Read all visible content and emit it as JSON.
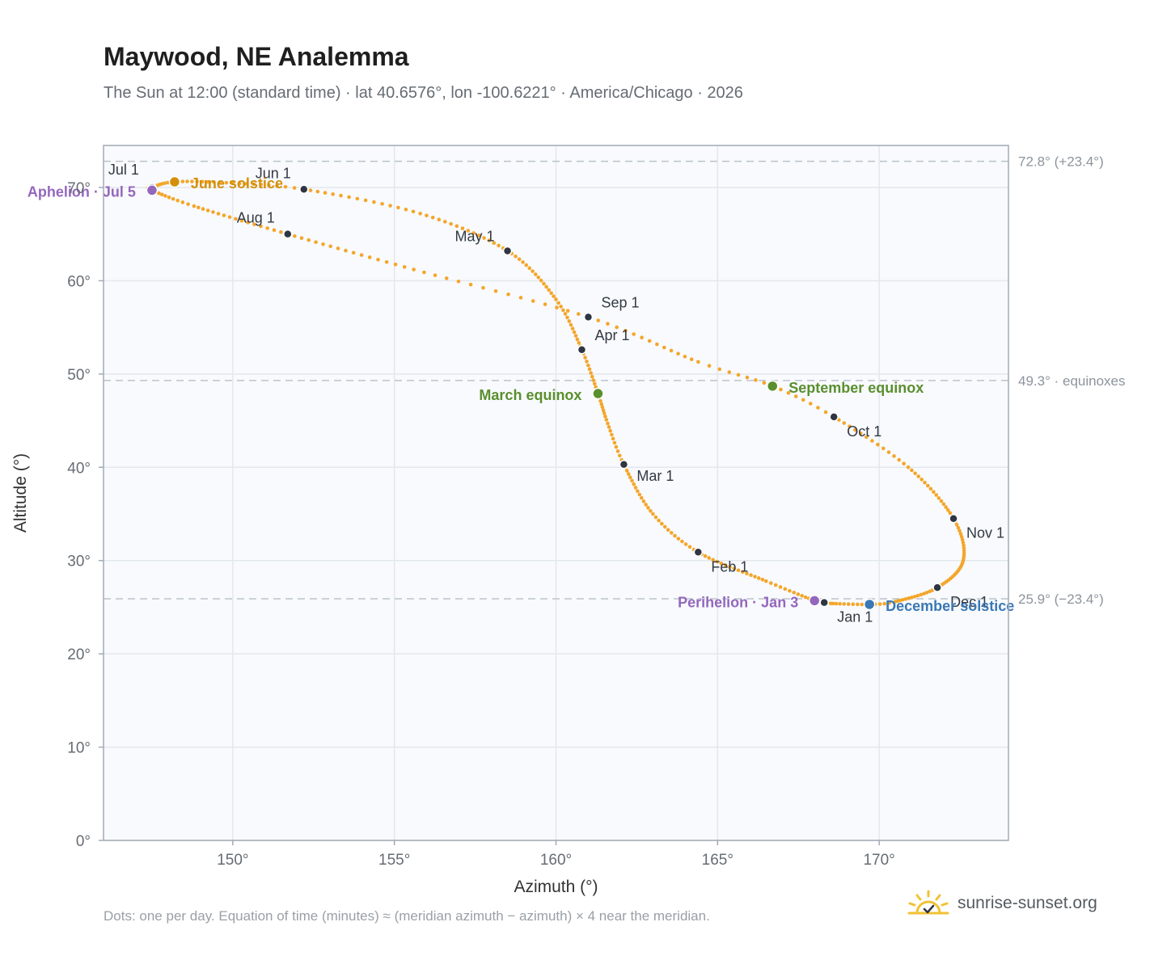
{
  "header": {
    "title": "Maywood, NE Analemma",
    "subtitle": "The Sun at 12:00 (standard time) · lat 40.6576°, lon -100.6221° · America/Chicago · 2026"
  },
  "footer": {
    "note": "Dots: one per day. Equation of time (minutes) ≈ (meridian azimuth − azimuth) × 4 near the meridian.",
    "brand": "sunrise-sunset.org"
  },
  "colors": {
    "curve": "#f4a62a",
    "month_marker": "#2f3542",
    "equinox": "#5a8f2e",
    "june_solstice": "#d4900d",
    "december_solstice": "#3a78b5",
    "apsis": "#9467bd",
    "plot_bg": "#f8fafd",
    "grid": "#e3e8ee",
    "axis": "#a3aab5",
    "ref_line": "#bcc3cb",
    "brand_sun": "#f1c232"
  },
  "chart_data": {
    "type": "scatter",
    "xlabel": "Azimuth (°)",
    "ylabel": "Altitude (°)",
    "xlim": [
      146,
      174
    ],
    "ylim": [
      0,
      74.5
    ],
    "x_ticks": [
      150,
      155,
      160,
      165,
      170
    ],
    "x_tick_labels": [
      "150°",
      "155°",
      "160°",
      "165°",
      "170°"
    ],
    "y_ticks": [
      0,
      10,
      20,
      30,
      40,
      50,
      60,
      70
    ],
    "y_tick_labels": [
      "0°",
      "10°",
      "20°",
      "30°",
      "40°",
      "50°",
      "60°",
      "70°"
    ],
    "grid": true,
    "reference_lines": [
      {
        "y": 72.8,
        "label": "72.8° (+23.4°)"
      },
      {
        "y": 49.3,
        "label": "49.3° · equinoxes"
      },
      {
        "y": 25.9,
        "label": "25.9° (−23.4°)"
      }
    ],
    "month_markers": [
      {
        "label": "Jan 1",
        "az": 168.3,
        "alt": 25.5
      },
      {
        "label": "Feb 1",
        "az": 164.4,
        "alt": 30.9
      },
      {
        "label": "Mar 1",
        "az": 162.1,
        "alt": 40.3
      },
      {
        "label": "Apr 1",
        "az": 160.8,
        "alt": 52.6
      },
      {
        "label": "May 1",
        "az": 158.5,
        "alt": 63.2
      },
      {
        "label": "Jun 1",
        "az": 152.2,
        "alt": 69.8
      },
      {
        "label": "Jul 1",
        "az": 147.5,
        "alt": 70.0
      },
      {
        "label": "Aug 1",
        "az": 151.7,
        "alt": 65.0
      },
      {
        "label": "Sep 1",
        "az": 161.0,
        "alt": 56.1
      },
      {
        "label": "Oct 1",
        "az": 168.6,
        "alt": 45.4
      },
      {
        "label": "Nov 1",
        "az": 172.3,
        "alt": 34.5
      },
      {
        "label": "Dec 1",
        "az": 171.8,
        "alt": 27.1
      }
    ],
    "events": [
      {
        "label": "March equinox",
        "az": 161.3,
        "alt": 47.9,
        "color_key": "equinox"
      },
      {
        "label": "September equinox",
        "az": 166.7,
        "alt": 48.7,
        "color_key": "equinox"
      },
      {
        "label": "June solstice",
        "az": 148.2,
        "alt": 70.6,
        "color_key": "june_solstice"
      },
      {
        "label": "December solstice",
        "az": 169.7,
        "alt": 25.3,
        "color_key": "december_solstice"
      },
      {
        "label": "Aphelion · Jul 5",
        "az": 147.5,
        "alt": 69.7,
        "color_key": "apsis"
      },
      {
        "label": "Perihelion · Jan 3",
        "az": 168.0,
        "alt": 25.7,
        "color_key": "apsis"
      }
    ],
    "curve_anchors": [
      [
        1,
        168.3,
        25.5
      ],
      [
        3,
        168.0,
        25.7
      ],
      [
        15,
        166.5,
        27.8
      ],
      [
        32,
        164.4,
        30.9
      ],
      [
        45,
        163.0,
        35.0
      ],
      [
        60,
        162.1,
        40.3
      ],
      [
        70,
        161.6,
        44.7
      ],
      [
        79,
        161.3,
        47.9
      ],
      [
        91,
        160.8,
        52.6
      ],
      [
        105,
        160.0,
        58.0
      ],
      [
        121,
        158.5,
        63.2
      ],
      [
        137,
        155.8,
        67.2
      ],
      [
        152,
        152.2,
        69.8
      ],
      [
        162,
        149.8,
        70.5
      ],
      [
        172,
        148.2,
        70.6
      ],
      [
        182,
        147.5,
        70.0
      ],
      [
        186,
        147.5,
        69.7
      ],
      [
        197,
        148.8,
        68.0
      ],
      [
        213,
        151.7,
        65.0
      ],
      [
        229,
        155.6,
        61.2
      ],
      [
        244,
        161.0,
        56.1
      ],
      [
        258,
        164.4,
        51.3
      ],
      [
        266,
        166.7,
        48.7
      ],
      [
        274,
        168.6,
        45.4
      ],
      [
        288,
        170.9,
        40.0
      ],
      [
        305,
        172.3,
        34.5
      ],
      [
        320,
        172.6,
        30.0
      ],
      [
        335,
        171.8,
        27.1
      ],
      [
        350,
        170.5,
        25.6
      ],
      [
        355,
        169.7,
        25.3
      ],
      [
        365,
        168.5,
        25.4
      ]
    ]
  }
}
